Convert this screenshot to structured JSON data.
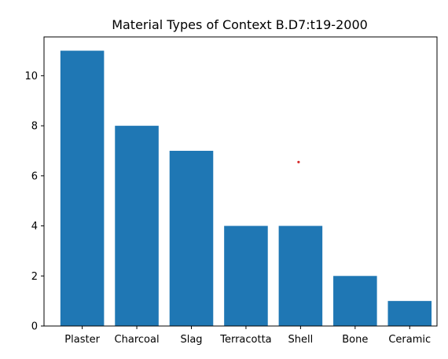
{
  "chart_data": {
    "type": "bar",
    "title": "Material Types of Context B.D7:t19-2000",
    "xlabel": "",
    "ylabel": "",
    "categories": [
      "Plaster",
      "Charcoal",
      "Slag",
      "Terracotta",
      "Shell",
      "Bone",
      "Ceramic"
    ],
    "values": [
      11,
      8,
      7,
      4,
      4,
      2,
      1
    ],
    "ylim": [
      0,
      11.55
    ],
    "yticks": [
      0,
      2,
      4,
      6,
      8,
      10
    ],
    "grid": false,
    "legend": "none",
    "bar_color": "#1f77b4",
    "annotations": [
      {
        "type": "point",
        "x": "Shell",
        "y": 6.55,
        "color": "#d62728"
      }
    ]
  }
}
